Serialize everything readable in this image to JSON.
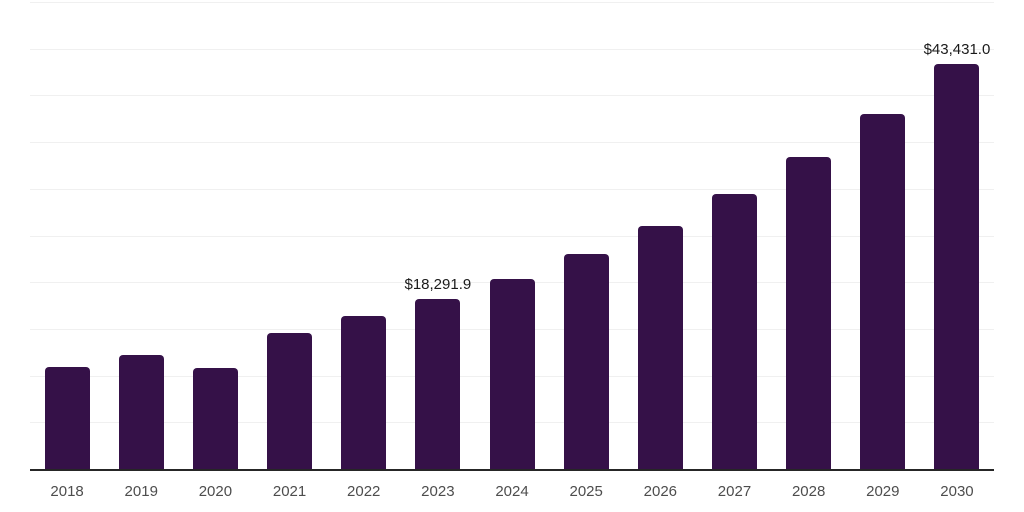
{
  "chart_data": {
    "type": "bar",
    "categories": [
      "2018",
      "2019",
      "2020",
      "2021",
      "2022",
      "2023",
      "2024",
      "2025",
      "2026",
      "2027",
      "2028",
      "2029",
      "2030"
    ],
    "values": [
      11000,
      12350,
      10900,
      14700,
      16500,
      18291.9,
      20500,
      23100,
      26100,
      29500,
      33500,
      38100,
      43431.0
    ],
    "data_labels": [
      "",
      "",
      "",
      "",
      "",
      "$18,291.9",
      "",
      "",
      "",
      "",
      "",
      "",
      "$43,431.0"
    ],
    "title": "",
    "xlabel": "",
    "ylabel": "",
    "ylim": [
      0,
      50000
    ],
    "gridline_interval": 5000,
    "grid": "horizontal-only",
    "y_axis_labels_visible": false,
    "legend": "none",
    "bar_color": "#351148",
    "gridline_color": "#f0f0f0",
    "axis_line_color": "#262626",
    "data_label_color": "#1a1a1a",
    "tick_label_color": "#4d4d4d"
  }
}
